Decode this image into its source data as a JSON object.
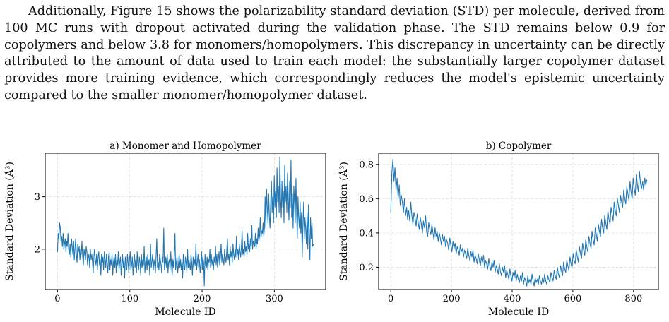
{
  "paragraph": "Additionally, Figure 15 shows the polarizability standard deviation (STD) per molecule, derived from 100 MC runs with dropout activated during the validation phase. The STD remains below 0.9 for copolymers and below 3.8 for monomers/homopolymers. This discrepancy in uncertainty can be directly attributed to the amount of data used to train each model: the substantially larger copolymer dataset provides more training evidence, which correspondingly reduces the model's epistemic uncertainty compared to the smaller monomer/homopolymer dataset.",
  "colors": {
    "line": "#1f77b4",
    "grid": "#d9d9d9"
  },
  "chart_data": [
    {
      "type": "line",
      "title": "a) Monomer and Homopolymer",
      "xlabel": "Molecule ID",
      "ylabel": "Standard Deviation (Å³)",
      "xlim": [
        -17,
        371
      ],
      "ylim": [
        1.23,
        3.83
      ],
      "xticks": [
        0,
        100,
        200,
        300
      ],
      "yticks": [
        2,
        3
      ],
      "grid": true,
      "series": [
        {
          "x_start": 0,
          "x_end": 354,
          "values": [
            1.95,
            2.3,
            2.2,
            2.5,
            2.4,
            2.15,
            2.25,
            2.05,
            2.3,
            2.0,
            2.1,
            2.2,
            1.95,
            2.15,
            2.05,
            2.3,
            2.0,
            1.9,
            2.1,
            1.85,
            2.2,
            2.05,
            1.9,
            2.15,
            1.8,
            2.0,
            2.2,
            1.9,
            1.75,
            2.1,
            1.95,
            2.05,
            1.8,
            2.0,
            1.9,
            2.15,
            1.85,
            1.7,
            2.0,
            1.9,
            1.8,
            2.05,
            1.95,
            1.7,
            1.85,
            1.9,
            1.65,
            2.0,
            1.8,
            1.9,
            1.75,
            1.55,
            1.85,
            2.0,
            1.8,
            1.7,
            1.9,
            1.6,
            1.85,
            1.95,
            1.7,
            1.8,
            1.5,
            1.9,
            1.75,
            1.85,
            1.6,
            1.95,
            1.8,
            1.65,
            1.9,
            1.7,
            1.55,
            1.85,
            1.95,
            1.6,
            1.8,
            1.7,
            1.9,
            1.5,
            1.75,
            1.85,
            1.65,
            1.9,
            1.55,
            1.8,
            1.7,
            1.95,
            1.6,
            1.75,
            1.85,
            1.5,
            1.7,
            1.9,
            1.65,
            1.8,
            1.45,
            1.85,
            1.7,
            1.6,
            1.9,
            1.75,
            1.55,
            1.8,
            1.95,
            1.6,
            1.7,
            1.85,
            1.5,
            1.75,
            1.9,
            1.65,
            1.8,
            1.55,
            1.95,
            1.7,
            1.6,
            1.85,
            1.75,
            1.5,
            1.9,
            1.65,
            1.8,
            1.7,
            2.05,
            1.55,
            1.75,
            1.85,
            1.6,
            1.9,
            1.7,
            1.8,
            1.5,
            2.1,
            1.65,
            1.75,
            1.9,
            1.6,
            1.8,
            1.7,
            1.55,
            1.85,
            2.2,
            1.65,
            1.75,
            1.6,
            1.9,
            1.8,
            1.7,
            1.55,
            1.85,
            1.75,
            2.4,
            1.6,
            1.7,
            1.85,
            1.65,
            1.9,
            1.55,
            1.75,
            1.8,
            1.6,
            1.95,
            1.7,
            1.5,
            1.8,
            1.65,
            1.9,
            2.3,
            1.6,
            1.75,
            1.85,
            1.55,
            1.7,
            1.9,
            1.65,
            1.8,
            1.6,
            1.75,
            1.45,
            1.9,
            1.7,
            1.6,
            1.85,
            1.75,
            1.55,
            2.0,
            1.65,
            1.8,
            1.7,
            1.6,
            1.9,
            1.75,
            1.5,
            1.85,
            1.65,
            1.8,
            1.7,
            2.1,
            1.6,
            1.75,
            1.9,
            1.65,
            1.8,
            1.55,
            1.7,
            1.95,
            1.6,
            1.85,
            1.75,
            1.3,
            1.9,
            1.7,
            1.65,
            1.85,
            1.6,
            1.8,
            1.75,
            2.0,
            1.65,
            1.9,
            1.7,
            1.8,
            1.6,
            1.85,
            1.75,
            2.05,
            1.7,
            1.9,
            1.65,
            1.8,
            1.95,
            1.7,
            1.85,
            2.1,
            1.75,
            1.9,
            1.8,
            1.7,
            2.0,
            1.85,
            1.75,
            1.95,
            2.2,
            1.8,
            1.9,
            1.7,
            2.05,
            1.85,
            1.95,
            1.75,
            2.1,
            1.9,
            1.8,
            2.0,
            1.85,
            2.25,
            1.9,
            2.0,
            1.8,
            2.1,
            1.95,
            1.85,
            2.05,
            2.35,
            1.9,
            2.0,
            1.85,
            2.15,
            1.95,
            2.05,
            1.9,
            2.3,
            2.0,
            2.1,
            1.95,
            2.2,
            2.05,
            2.45,
            2.0,
            2.15,
            2.1,
            2.05,
            2.3,
            2.0,
            2.2,
            2.1,
            2.4,
            2.15,
            2.25,
            2.6,
            2.2,
            2.35,
            2.3,
            2.5,
            2.25,
            2.4,
            3.0,
            2.4,
            3.15,
            2.8,
            2.5,
            3.05,
            2.6,
            2.4,
            2.9,
            3.3,
            2.7,
            3.0,
            2.5,
            3.4,
            2.8,
            3.1,
            2.6,
            3.55,
            2.9,
            3.2,
            2.7,
            3.75,
            3.0,
            2.6,
            3.3,
            2.8,
            3.1,
            2.5,
            3.6,
            2.9,
            3.2,
            2.7,
            3.45,
            3.0,
            2.55,
            3.3,
            2.8,
            3.7,
            2.6,
            3.05,
            2.4,
            3.2,
            2.9,
            2.5,
            3.35,
            2.7,
            2.2,
            3.0,
            2.6,
            2.4,
            2.9,
            2.3,
            2.7,
            1.85,
            2.5,
            2.9,
            2.2,
            2.6,
            2.4,
            2.1,
            2.7,
            2.0,
            2.85,
            2.3,
            1.8,
            2.6,
            2.2,
            2.5,
            2.05,
            2.1
          ]
        }
      ]
    },
    {
      "type": "line",
      "title": "b) Copolymer",
      "xlabel": "Molecule ID",
      "ylabel": "Standard Deviation (Å³)",
      "xlim": [
        -40,
        882
      ],
      "ylim": [
        0.07,
        0.865
      ],
      "xticks": [
        0,
        200,
        400,
        600,
        800
      ],
      "yticks": [
        0.2,
        0.4,
        0.6,
        0.8
      ],
      "grid": true,
      "series": [
        {
          "x_start": 0,
          "x_end": 844,
          "values": [
            0.52,
            0.75,
            0.83,
            0.7,
            0.78,
            0.65,
            0.72,
            0.6,
            0.68,
            0.56,
            0.62,
            0.58,
            0.52,
            0.6,
            0.5,
            0.55,
            0.48,
            0.53,
            0.47,
            0.58,
            0.5,
            0.45,
            0.52,
            0.49,
            0.44,
            0.51,
            0.46,
            0.42,
            0.49,
            0.45,
            0.4,
            0.47,
            0.43,
            0.5,
            0.41,
            0.38,
            0.46,
            0.42,
            0.39,
            0.45,
            0.4,
            0.36,
            0.43,
            0.38,
            0.41,
            0.35,
            0.4,
            0.37,
            0.33,
            0.39,
            0.35,
            0.38,
            0.32,
            0.36,
            0.34,
            0.3,
            0.37,
            0.33,
            0.29,
            0.35,
            0.31,
            0.34,
            0.28,
            0.32,
            0.3,
            0.27,
            0.33,
            0.29,
            0.31,
            0.26,
            0.3,
            0.28,
            0.25,
            0.31,
            0.27,
            0.24,
            0.29,
            0.26,
            0.3,
            0.23,
            0.27,
            0.25,
            0.22,
            0.28,
            0.24,
            0.21,
            0.26,
            0.23,
            0.27,
            0.2,
            0.24,
            0.22,
            0.19,
            0.25,
            0.21,
            0.18,
            0.23,
            0.2,
            0.24,
            0.17,
            0.21,
            0.19,
            0.16,
            0.22,
            0.18,
            0.15,
            0.2,
            0.17,
            0.21,
            0.14,
            0.18,
            0.16,
            0.13,
            0.19,
            0.15,
            0.12,
            0.17,
            0.14,
            0.18,
            0.12,
            0.16,
            0.13,
            0.11,
            0.15,
            0.12,
            0.17,
            0.1,
            0.14,
            0.12,
            0.09,
            0.15,
            0.11,
            0.13,
            0.1,
            0.16,
            0.12,
            0.09,
            0.14,
            0.11,
            0.13,
            0.1,
            0.15,
            0.12,
            0.1,
            0.14,
            0.11,
            0.16,
            0.12,
            0.1,
            0.15,
            0.13,
            0.11,
            0.17,
            0.14,
            0.12,
            0.18,
            0.15,
            0.13,
            0.2,
            0.16,
            0.14,
            0.21,
            0.18,
            0.15,
            0.23,
            0.19,
            0.17,
            0.24,
            0.21,
            0.18,
            0.26,
            0.22,
            0.2,
            0.28,
            0.24,
            0.22,
            0.3,
            0.26,
            0.23,
            0.32,
            0.28,
            0.25,
            0.34,
            0.3,
            0.27,
            0.36,
            0.32,
            0.29,
            0.38,
            0.34,
            0.31,
            0.41,
            0.36,
            0.33,
            0.43,
            0.39,
            0.35,
            0.45,
            0.41,
            0.38,
            0.48,
            0.43,
            0.4,
            0.5,
            0.46,
            0.42,
            0.53,
            0.48,
            0.45,
            0.55,
            0.51,
            0.47,
            0.58,
            0.53,
            0.5,
            0.6,
            0.56,
            0.52,
            0.62,
            0.58,
            0.55,
            0.65,
            0.6,
            0.57,
            0.67,
            0.63,
            0.59,
            0.7,
            0.64,
            0.6,
            0.72,
            0.66,
            0.62,
            0.74,
            0.68,
            0.64,
            0.76,
            0.69,
            0.66,
            0.7,
            0.65,
            0.72,
            0.68,
            0.71
          ]
        }
      ]
    }
  ]
}
